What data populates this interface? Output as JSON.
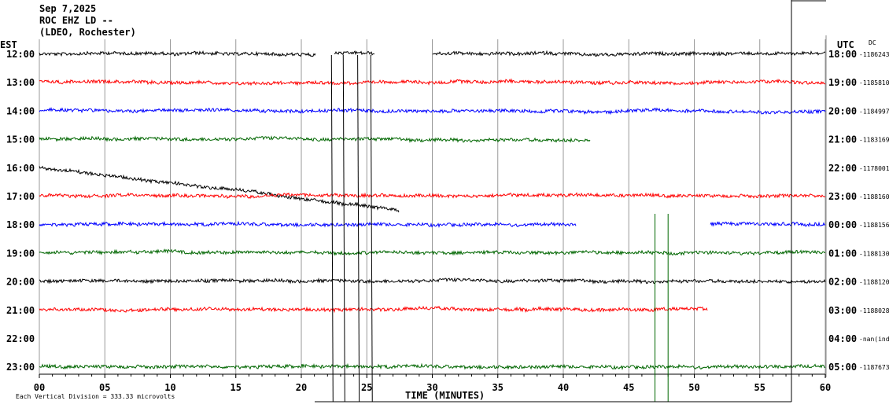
{
  "header": {
    "date": "Sep 7,2025",
    "station": "ROC EHZ LD --",
    "network": "(LDEO, Rochester)"
  },
  "chart_data": {
    "type": "line",
    "title": "Sep 7,2025 ROC EHZ LD --",
    "left_axis_label": "EST",
    "right_axis_label": "UTC",
    "dc_label": "DC",
    "xlabel": "TIME (MINUTES)",
    "xlim": [
      0,
      60
    ],
    "x_ticks": [
      "00",
      "05",
      "10",
      "15",
      "20",
      "25",
      "30",
      "35",
      "40",
      "45",
      "50",
      "55",
      "60"
    ],
    "scale_note": "Each Vertical Division =  333.33 microvolts",
    "rows": [
      {
        "est": "12:00",
        "utc": "18:00",
        "dc": "-1186243",
        "color": "#000000",
        "drift": 0.3,
        "gaps": [
          [
            21.1,
            22.5
          ],
          [
            25.6,
            30
          ]
        ]
      },
      {
        "est": "13:00",
        "utc": "19:00",
        "dc": "-1185810",
        "color": "#ff0000",
        "drift": 1.0,
        "gaps": []
      },
      {
        "est": "14:00",
        "utc": "20:00",
        "dc": "-1184997",
        "color": "#0000ff",
        "drift": 1.6,
        "gaps": []
      },
      {
        "est": "15:00",
        "utc": "21:00",
        "dc": "-1183169",
        "color": "#006600",
        "drift": 2.2,
        "gaps": [
          [
            42.1,
            60
          ]
        ]
      },
      {
        "est": "16:00",
        "utc": "22:00",
        "dc": "-1178001",
        "color": "#000000",
        "drift": 12,
        "gaps": [
          [
            27.5,
            60
          ]
        ]
      },
      {
        "est": "17:00",
        "utc": "23:00",
        "dc": "-1188160",
        "color": "#ff0000",
        "drift": 0,
        "gaps": []
      },
      {
        "est": "18:00",
        "utc": "00:00",
        "dc": "-1188156",
        "color": "#0000ff",
        "drift": 0,
        "gaps": [
          [
            41,
            51.2
          ]
        ]
      },
      {
        "est": "19:00",
        "utc": "01:00",
        "dc": "-1188130",
        "color": "#006600",
        "drift": 0,
        "gaps": []
      },
      {
        "est": "20:00",
        "utc": "02:00",
        "dc": "-1188120",
        "color": "#000000",
        "drift": 0,
        "gaps": []
      },
      {
        "est": "21:00",
        "utc": "03:00",
        "dc": "-1188028",
        "color": "#ff0000",
        "drift": 0,
        "gaps": [
          [
            51,
            60
          ]
        ]
      },
      {
        "est": "22:00",
        "utc": "04:00",
        "dc": "-nan(ind",
        "color": "#0000ff",
        "drift": 0,
        "gaps": [
          [
            0,
            60
          ]
        ]
      },
      {
        "est": "23:00",
        "utc": "05:00",
        "dc": "-1187673",
        "color": "#006600",
        "drift": 0,
        "gaps": []
      }
    ]
  }
}
